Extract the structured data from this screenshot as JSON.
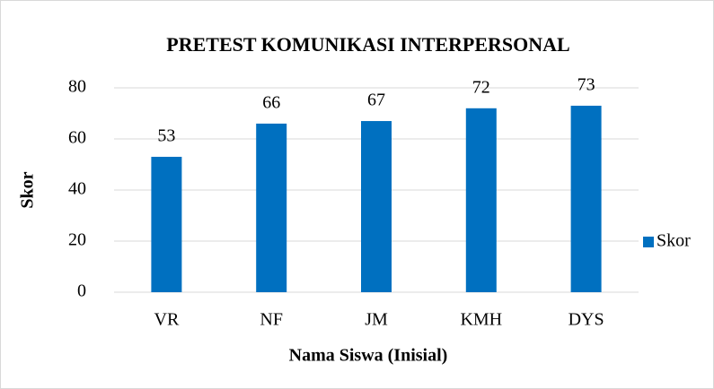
{
  "chart_data": {
    "type": "bar",
    "title": "PRETEST KOMUNIKASI INTERPERSONAL",
    "categories": [
      "VR",
      "NF",
      "JM",
      "KMH",
      "DYS"
    ],
    "series": [
      {
        "name": "Skor",
        "color": "#0070c0",
        "values": [
          53,
          66,
          67,
          72,
          73
        ]
      }
    ],
    "xlabel": "Nama Siswa (Inisial)",
    "ylabel": "Skor",
    "ylim": [
      0,
      80
    ],
    "yticks": [
      0,
      20,
      40,
      60,
      80
    ],
    "grid": true,
    "legend": "right"
  }
}
